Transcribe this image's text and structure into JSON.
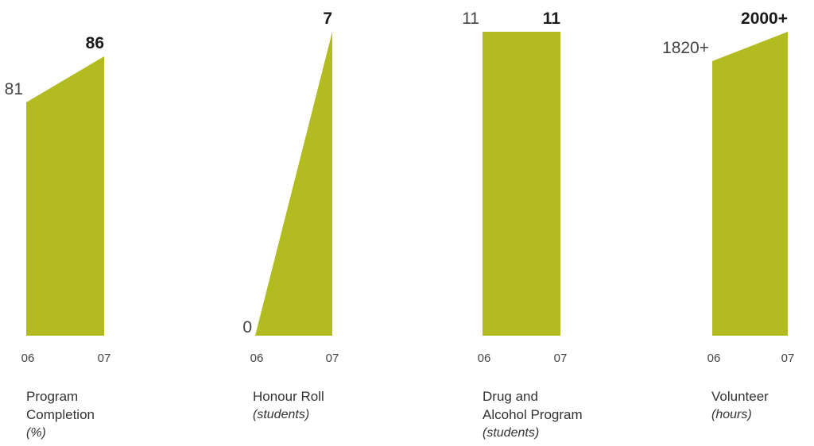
{
  "colors": {
    "fill": "#b2bb1f",
    "text": "#222222"
  },
  "chart_data": [
    {
      "type": "area",
      "x": [
        "06",
        "07"
      ],
      "values": [
        81,
        86
      ],
      "data_labels": [
        "81",
        "86"
      ],
      "title_lines": [
        "Program",
        "Completion"
      ],
      "unit": "(%)"
    },
    {
      "type": "area",
      "x": [
        "06",
        "07"
      ],
      "values": [
        0,
        7
      ],
      "data_labels": [
        "0",
        "7"
      ],
      "title_lines": [
        "Honour Roll"
      ],
      "unit": "(students)"
    },
    {
      "type": "area",
      "x": [
        "06",
        "07"
      ],
      "values": [
        11,
        11
      ],
      "data_labels": [
        "11",
        "11"
      ],
      "title_lines": [
        "Drug and",
        "Alcohol Program"
      ],
      "unit": "(students)"
    },
    {
      "type": "area",
      "x": [
        "06",
        "07"
      ],
      "values": [
        1820,
        2000
      ],
      "data_labels": [
        "1820+",
        "2000+"
      ],
      "title_lines": [
        "Volunteer"
      ],
      "unit": "(hours)"
    }
  ]
}
